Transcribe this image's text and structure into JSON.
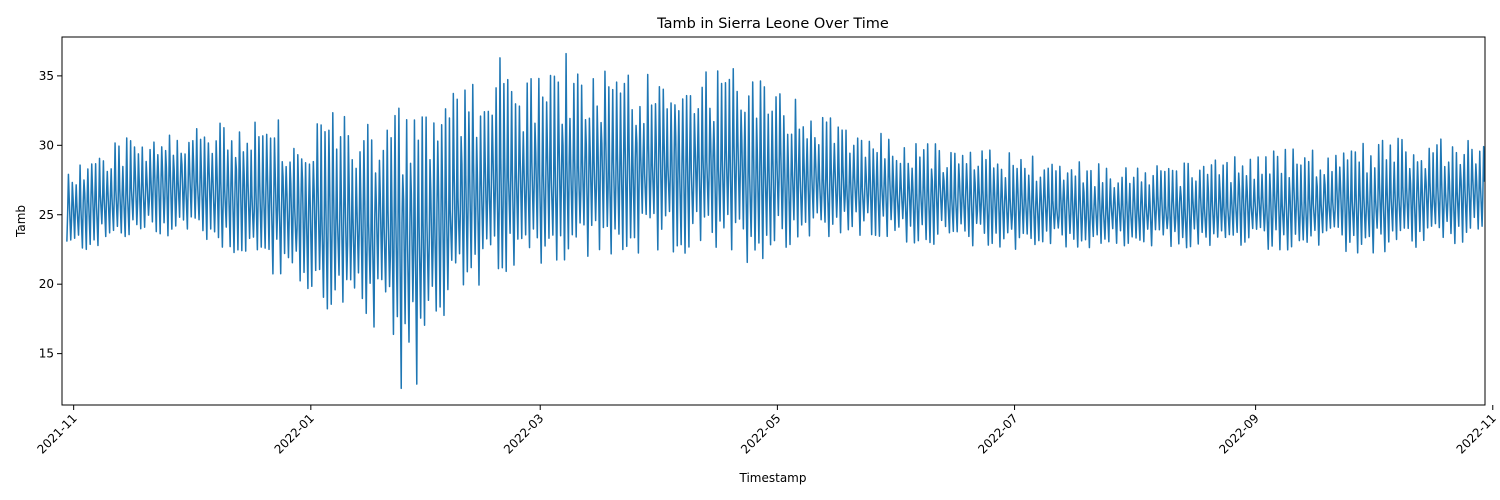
{
  "chart_data": {
    "type": "line",
    "title": "Tamb in Sierra Leone Over Time",
    "xlabel": "Timestamp",
    "ylabel": "Tamb",
    "x_range": [
      "2021-10-29",
      "2022-10-30"
    ],
    "ylim": [
      11.3,
      37.8
    ],
    "yticks": [
      15,
      20,
      25,
      30,
      35
    ],
    "xticks": [
      "2021-11",
      "2022-01",
      "2022-03",
      "2022-05",
      "2022-07",
      "2022-09",
      "2022-11"
    ],
    "xtick_dates": [
      "2021-11-01",
      "2022-01-01",
      "2022-03-01",
      "2022-05-01",
      "2022-07-01",
      "2022-09-01",
      "2022-11-01"
    ],
    "grid": false,
    "legend": "none",
    "series_color": "#1f77b4",
    "series": [
      {
        "sampling": "one high/low pair per day (approximate envelope of the plotted signal)",
        "start_date": "2021-10-30",
        "end_date": "2022-10-29",
        "envelope_dates": [
          "2021-10-30",
          "2021-11-15",
          "2021-12-01",
          "2021-12-20",
          "2022-01-05",
          "2022-01-25",
          "2022-02-10",
          "2022-03-01",
          "2022-03-20",
          "2022-04-10",
          "2022-04-25",
          "2022-05-10",
          "2022-06-01",
          "2022-07-01",
          "2022-08-01",
          "2022-09-01",
          "2022-10-01",
          "2022-10-29"
        ],
        "envelope_high": [
          28.5,
          31.0,
          31.5,
          31.8,
          32.5,
          33.0,
          34.5,
          35.0,
          35.5,
          35.8,
          35.5,
          32.5,
          30.5,
          29.5,
          28.5,
          29.5,
          30.5,
          30.5
        ],
        "envelope_low": [
          22.0,
          23.0,
          23.5,
          21.0,
          18.0,
          15.5,
          19.0,
          21.5,
          21.5,
          22.0,
          21.5,
          23.5,
          23.0,
          22.5,
          22.5,
          22.5,
          22.0,
          23.0
        ],
        "extremes": [
          {
            "date": "2022-01-24",
            "value": 12.5
          },
          {
            "date": "2022-01-28",
            "value": 12.8
          },
          {
            "date": "2022-03-07",
            "value": 36.6
          },
          {
            "date": "2022-02-18",
            "value": 36.3
          }
        ]
      }
    ]
  }
}
